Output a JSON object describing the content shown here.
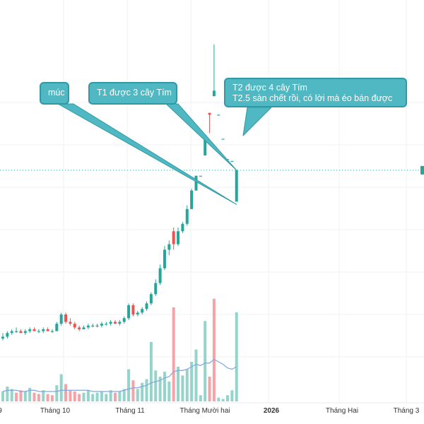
{
  "colors": {
    "up": "#26a69a",
    "down": "#ef5350",
    "up_volume": "#94d4cb",
    "down_volume": "#f5a3a6",
    "volume_ma": "#7fa6e0",
    "price_line": "#26a69a",
    "grid": "#eef0f3",
    "callout_bg": "#4fb8c2",
    "callout_border": "#2f9aa5",
    "callout_text": "#ffffff",
    "leader_line": "#2f9aa5"
  },
  "annotations": {
    "muc": {
      "text": "múc"
    },
    "t1": {
      "text": "T1 được 3 cây Tím"
    },
    "t2": {
      "line1": "T2 được 4 cây Tím",
      "line2": "T2.5 sàn chết rồi, có lời mà éo bán được"
    }
  },
  "chart_data": {
    "type": "candlestick",
    "title": "",
    "xlabel": "",
    "ylabel": "",
    "grid": true,
    "x_axis_labels": [
      "9",
      "Tháng 10",
      "Tháng 11",
      "Tháng Mười hai",
      "2026",
      "Tháng Hai",
      "Tháng 3"
    ],
    "x_axis_bold": [
      "2026"
    ],
    "y_axis_visible": false,
    "current_price_line": true,
    "price_unit": "relative",
    "candles": [
      {
        "o": 6.3,
        "h": 6.6,
        "l": 6.2,
        "c": 6.4
      },
      {
        "o": 6.4,
        "h": 6.7,
        "l": 6.3,
        "c": 6.6
      },
      {
        "o": 6.6,
        "h": 6.8,
        "l": 6.5,
        "c": 6.7
      },
      {
        "o": 6.7,
        "h": 6.9,
        "l": 6.6,
        "c": 6.7
      },
      {
        "o": 6.7,
        "h": 6.8,
        "l": 6.6,
        "c": 6.6
      },
      {
        "o": 6.6,
        "h": 6.8,
        "l": 6.5,
        "c": 6.7
      },
      {
        "o": 6.7,
        "h": 6.9,
        "l": 6.6,
        "c": 6.8
      },
      {
        "o": 6.8,
        "h": 6.9,
        "l": 6.7,
        "c": 6.7
      },
      {
        "o": 6.7,
        "h": 6.8,
        "l": 6.6,
        "c": 6.7
      },
      {
        "o": 6.7,
        "h": 6.9,
        "l": 6.6,
        "c": 6.8
      },
      {
        "o": 6.8,
        "h": 6.9,
        "l": 6.7,
        "c": 6.7
      },
      {
        "o": 6.7,
        "h": 6.8,
        "l": 6.6,
        "c": 6.7
      },
      {
        "o": 6.7,
        "h": 7.2,
        "l": 6.7,
        "c": 7.1
      },
      {
        "o": 7.1,
        "h": 7.7,
        "l": 7.0,
        "c": 7.6
      },
      {
        "o": 7.6,
        "h": 7.7,
        "l": 7.1,
        "c": 7.2
      },
      {
        "o": 7.2,
        "h": 7.4,
        "l": 7.0,
        "c": 7.1
      },
      {
        "o": 7.1,
        "h": 7.2,
        "l": 6.8,
        "c": 6.9
      },
      {
        "o": 6.9,
        "h": 7.0,
        "l": 6.7,
        "c": 6.8
      },
      {
        "o": 6.8,
        "h": 7.0,
        "l": 6.8,
        "c": 6.9
      },
      {
        "o": 6.9,
        "h": 7.1,
        "l": 6.8,
        "c": 7.0
      },
      {
        "o": 7.0,
        "h": 7.1,
        "l": 6.9,
        "c": 7.0
      },
      {
        "o": 7.0,
        "h": 7.1,
        "l": 6.9,
        "c": 7.0
      },
      {
        "o": 7.0,
        "h": 7.2,
        "l": 6.9,
        "c": 7.1
      },
      {
        "o": 7.1,
        "h": 7.2,
        "l": 7.0,
        "c": 7.1
      },
      {
        "o": 7.1,
        "h": 7.3,
        "l": 7.0,
        "c": 7.2
      },
      {
        "o": 7.2,
        "h": 7.3,
        "l": 7.1,
        "c": 7.1
      },
      {
        "o": 7.1,
        "h": 7.3,
        "l": 7.0,
        "c": 7.2
      },
      {
        "o": 7.2,
        "h": 7.5,
        "l": 7.1,
        "c": 7.4
      },
      {
        "o": 7.4,
        "h": 8.2,
        "l": 7.3,
        "c": 8.1
      },
      {
        "o": 8.1,
        "h": 8.2,
        "l": 7.5,
        "c": 7.6
      },
      {
        "o": 7.6,
        "h": 7.8,
        "l": 7.5,
        "c": 7.7
      },
      {
        "o": 7.7,
        "h": 8.0,
        "l": 7.6,
        "c": 7.9
      },
      {
        "o": 7.9,
        "h": 8.3,
        "l": 7.8,
        "c": 8.2
      },
      {
        "o": 8.2,
        "h": 8.8,
        "l": 8.1,
        "c": 8.7
      },
      {
        "o": 8.7,
        "h": 9.5,
        "l": 8.6,
        "c": 9.3
      },
      {
        "o": 9.3,
        "h": 10.3,
        "l": 9.2,
        "c": 10.1
      },
      {
        "o": 10.1,
        "h": 11.3,
        "l": 10.0,
        "c": 11.1
      },
      {
        "o": 11.1,
        "h": 11.6,
        "l": 10.8,
        "c": 11.4
      },
      {
        "o": 12.1,
        "h": 12.3,
        "l": 11.1,
        "c": 11.4
      },
      {
        "o": 11.4,
        "h": 12.3,
        "l": 11.3,
        "c": 12.1
      },
      {
        "o": 12.1,
        "h": 12.6,
        "l": 12.0,
        "c": 12.5
      },
      {
        "o": 12.5,
        "h": 13.5,
        "l": 12.4,
        "c": 13.3
      },
      {
        "o": 13.3,
        "h": 14.4,
        "l": 13.3,
        "c": 14.3
      },
      {
        "o": 14.3,
        "h": 15.1,
        "l": 14.3,
        "c": 15.1
      },
      {
        "o": 15.1,
        "h": 15.1,
        "l": 15.1,
        "c": 15.1
      },
      {
        "o": 16.2,
        "h": 17.3,
        "l": 16.2,
        "c": 17.3
      },
      {
        "o": 18.5,
        "h": 18.5,
        "l": 17.4,
        "c": 18.4
      },
      {
        "o": 19.4,
        "h": 22.2,
        "l": 19.4,
        "c": 19.7
      },
      {
        "o": 18.4,
        "h": 18.4,
        "l": 18.4,
        "c": 18.4
      },
      {
        "o": 17.1,
        "h": 17.1,
        "l": 17.1,
        "c": 17.1
      },
      {
        "o": 16.0,
        "h": 16.0,
        "l": 16.0,
        "c": 16.0
      },
      {
        "o": 15.9,
        "h": 15.9,
        "l": 15.9,
        "c": 15.9
      },
      {
        "o": 13.7,
        "h": 15.4,
        "l": 13.7,
        "c": 15.4
      }
    ],
    "volumes": [
      {
        "v": 0.8,
        "up": true
      },
      {
        "v": 1.2,
        "up": true
      },
      {
        "v": 1.0,
        "up": true
      },
      {
        "v": 0.7,
        "up": false
      },
      {
        "v": 0.9,
        "up": false
      },
      {
        "v": 0.8,
        "up": true
      },
      {
        "v": 1.1,
        "up": true
      },
      {
        "v": 0.7,
        "up": false
      },
      {
        "v": 0.6,
        "up": false
      },
      {
        "v": 0.9,
        "up": true
      },
      {
        "v": 0.6,
        "up": false
      },
      {
        "v": 0.5,
        "up": false
      },
      {
        "v": 1.3,
        "up": true
      },
      {
        "v": 2.2,
        "up": true
      },
      {
        "v": 1.4,
        "up": false
      },
      {
        "v": 0.9,
        "up": false
      },
      {
        "v": 0.8,
        "up": false
      },
      {
        "v": 0.6,
        "up": false
      },
      {
        "v": 0.7,
        "up": true
      },
      {
        "v": 0.9,
        "up": true
      },
      {
        "v": 0.6,
        "up": true
      },
      {
        "v": 0.7,
        "up": true
      },
      {
        "v": 0.8,
        "up": true
      },
      {
        "v": 0.6,
        "up": true
      },
      {
        "v": 0.9,
        "up": true
      },
      {
        "v": 0.7,
        "up": false
      },
      {
        "v": 0.8,
        "up": true
      },
      {
        "v": 1.0,
        "up": true
      },
      {
        "v": 2.6,
        "up": true
      },
      {
        "v": 1.7,
        "up": false
      },
      {
        "v": 1.0,
        "up": true
      },
      {
        "v": 1.5,
        "up": true
      },
      {
        "v": 1.8,
        "up": true
      },
      {
        "v": 4.8,
        "up": true
      },
      {
        "v": 2.5,
        "up": true
      },
      {
        "v": 2.0,
        "up": true
      },
      {
        "v": 2.4,
        "up": true
      },
      {
        "v": 1.6,
        "up": true
      },
      {
        "v": 7.6,
        "up": false
      },
      {
        "v": 2.8,
        "up": true
      },
      {
        "v": 2.1,
        "up": true
      },
      {
        "v": 2.6,
        "up": true
      },
      {
        "v": 3.2,
        "up": true
      },
      {
        "v": 4.2,
        "up": true
      },
      {
        "v": 0.5,
        "up": true
      },
      {
        "v": 6.5,
        "up": true
      },
      {
        "v": 2.0,
        "up": false
      },
      {
        "v": 8.3,
        "up": false
      },
      {
        "v": 0.3,
        "up": true
      },
      {
        "v": 0.2,
        "up": true
      },
      {
        "v": 0.5,
        "up": true
      },
      {
        "v": 0.9,
        "up": true
      },
      {
        "v": 7.2,
        "up": true
      }
    ],
    "volume_ma": [
      0.8,
      0.9,
      0.9,
      0.9,
      0.8,
      0.8,
      0.9,
      0.9,
      0.8,
      0.8,
      0.8,
      0.8,
      0.8,
      0.9,
      0.9,
      0.9,
      0.9,
      0.9,
      0.9,
      0.9,
      0.8,
      0.8,
      0.8,
      0.8,
      0.8,
      0.8,
      0.8,
      0.9,
      1.0,
      1.1,
      1.1,
      1.2,
      1.3,
      1.5,
      1.6,
      1.7,
      1.9,
      2.0,
      2.4,
      2.5,
      2.5,
      2.6,
      2.8,
      3.0,
      2.9,
      3.1,
      3.1,
      3.4,
      3.2,
      3.0,
      2.7,
      2.6,
      2.8
    ],
    "current_price": 15.4
  }
}
